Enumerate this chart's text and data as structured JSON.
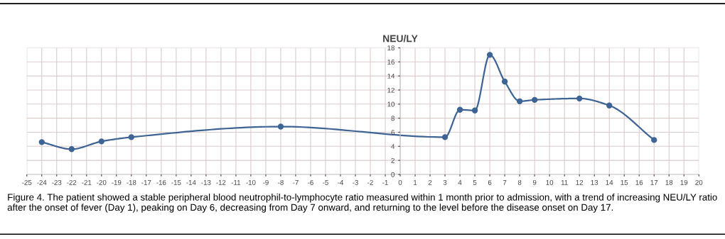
{
  "chart_data": {
    "type": "line",
    "title": "NEU/LY",
    "x": [
      -24,
      -22,
      -20,
      -18,
      -8,
      3,
      4,
      5,
      6,
      7,
      8,
      9,
      12,
      14,
      17
    ],
    "series": [
      {
        "color": "#3d6494",
        "values": [
          4.6,
          3.6,
          4.7,
          5.3,
          6.8,
          5.3,
          9.2,
          9.1,
          17.0,
          13.2,
          10.4,
          10.6,
          10.8,
          9.8,
          4.9
        ]
      }
    ],
    "xlim": [
      -25,
      20
    ],
    "xticks": [
      -25,
      -24,
      -23,
      -22,
      -21,
      -20,
      -19,
      -18,
      -17,
      -16,
      -15,
      -14,
      -13,
      -12,
      -11,
      -10,
      -9,
      -8,
      -7,
      -6,
      -5,
      -4,
      -3,
      -2,
      -1,
      0,
      1,
      2,
      3,
      4,
      5,
      6,
      7,
      8,
      9,
      10,
      11,
      12,
      13,
      14,
      15,
      16,
      17,
      18,
      19,
      20
    ],
    "ylim": [
      0,
      18
    ],
    "yticks": [
      0,
      2,
      4,
      6,
      8,
      10,
      12,
      14,
      16,
      18
    ],
    "grid": true,
    "marker": "circle",
    "line_style": "solid",
    "legend": false,
    "annotations": [
      "Figure 4. The patient showed a stable peripheral blood neutrophil-to-lymphocyte ratio measured within 1 month prior to admission, with a trend of increasing NEU/LY ratio after the onset of fever (Day 1), peaking on Day 6, decreasing from Day 7 onward, and returning to the level before the disease onset on Day 17."
    ]
  }
}
